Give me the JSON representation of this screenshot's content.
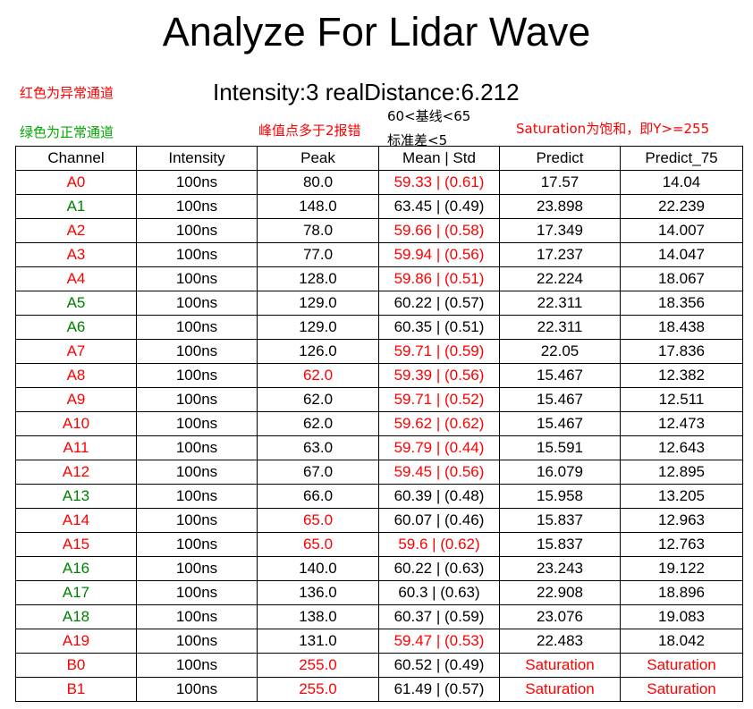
{
  "title": "Analyze For Lidar Wave",
  "summary": "Intensity:3 realDistance:6.212",
  "legend": {
    "red_text": "红色为异常通道",
    "green_text": "绿色为正常通道"
  },
  "notes": {
    "peak": "峰值点多于2报错",
    "mean_rule": "60<基线<65",
    "std_rule": "标准差<5",
    "saturation": "Saturation为饱和，即Y>=255"
  },
  "colors": {
    "abnormal": "#ff0000",
    "normal": "#008000"
  },
  "table": {
    "headers": [
      "Channel",
      "Intensity",
      "Peak",
      "Mean | Std",
      "Predict",
      "Predict_75"
    ],
    "rows": [
      {
        "channel": "A0",
        "status": "abnormal",
        "intensity": "100ns",
        "peak": "80.0",
        "peak_flag": false,
        "mean_std": "59.33 | (0.61)",
        "mean_flag": true,
        "predict": "17.57",
        "predict_flag": false,
        "predict_75": "14.04",
        "predict_75_flag": false
      },
      {
        "channel": "A1",
        "status": "normal",
        "intensity": "100ns",
        "peak": "148.0",
        "peak_flag": false,
        "mean_std": "63.45 | (0.49)",
        "mean_flag": false,
        "predict": "23.898",
        "predict_flag": false,
        "predict_75": "22.239",
        "predict_75_flag": false
      },
      {
        "channel": "A2",
        "status": "abnormal",
        "intensity": "100ns",
        "peak": "78.0",
        "peak_flag": false,
        "mean_std": "59.66 | (0.58)",
        "mean_flag": true,
        "predict": "17.349",
        "predict_flag": false,
        "predict_75": "14.007",
        "predict_75_flag": false
      },
      {
        "channel": "A3",
        "status": "abnormal",
        "intensity": "100ns",
        "peak": "77.0",
        "peak_flag": false,
        "mean_std": "59.94 | (0.56)",
        "mean_flag": true,
        "predict": "17.237",
        "predict_flag": false,
        "predict_75": "14.047",
        "predict_75_flag": false
      },
      {
        "channel": "A4",
        "status": "abnormal",
        "intensity": "100ns",
        "peak": "128.0",
        "peak_flag": false,
        "mean_std": "59.86 | (0.51)",
        "mean_flag": true,
        "predict": "22.224",
        "predict_flag": false,
        "predict_75": "18.067",
        "predict_75_flag": false
      },
      {
        "channel": "A5",
        "status": "normal",
        "intensity": "100ns",
        "peak": "129.0",
        "peak_flag": false,
        "mean_std": "60.22 | (0.57)",
        "mean_flag": false,
        "predict": "22.311",
        "predict_flag": false,
        "predict_75": "18.356",
        "predict_75_flag": false
      },
      {
        "channel": "A6",
        "status": "normal",
        "intensity": "100ns",
        "peak": "129.0",
        "peak_flag": false,
        "mean_std": "60.35 | (0.51)",
        "mean_flag": false,
        "predict": "22.311",
        "predict_flag": false,
        "predict_75": "18.438",
        "predict_75_flag": false
      },
      {
        "channel": "A7",
        "status": "abnormal",
        "intensity": "100ns",
        "peak": "126.0",
        "peak_flag": false,
        "mean_std": "59.71 | (0.59)",
        "mean_flag": true,
        "predict": "22.05",
        "predict_flag": false,
        "predict_75": "17.836",
        "predict_75_flag": false
      },
      {
        "channel": "A8",
        "status": "abnormal",
        "intensity": "100ns",
        "peak": "62.0",
        "peak_flag": true,
        "mean_std": "59.39 | (0.56)",
        "mean_flag": true,
        "predict": "15.467",
        "predict_flag": false,
        "predict_75": "12.382",
        "predict_75_flag": false
      },
      {
        "channel": "A9",
        "status": "abnormal",
        "intensity": "100ns",
        "peak": "62.0",
        "peak_flag": false,
        "mean_std": "59.71 | (0.52)",
        "mean_flag": true,
        "predict": "15.467",
        "predict_flag": false,
        "predict_75": "12.511",
        "predict_75_flag": false
      },
      {
        "channel": "A10",
        "status": "abnormal",
        "intensity": "100ns",
        "peak": "62.0",
        "peak_flag": false,
        "mean_std": "59.62 | (0.62)",
        "mean_flag": true,
        "predict": "15.467",
        "predict_flag": false,
        "predict_75": "12.473",
        "predict_75_flag": false
      },
      {
        "channel": "A11",
        "status": "abnormal",
        "intensity": "100ns",
        "peak": "63.0",
        "peak_flag": false,
        "mean_std": "59.79 | (0.44)",
        "mean_flag": true,
        "predict": "15.591",
        "predict_flag": false,
        "predict_75": "12.643",
        "predict_75_flag": false
      },
      {
        "channel": "A12",
        "status": "abnormal",
        "intensity": "100ns",
        "peak": "67.0",
        "peak_flag": false,
        "mean_std": "59.45 | (0.56)",
        "mean_flag": true,
        "predict": "16.079",
        "predict_flag": false,
        "predict_75": "12.895",
        "predict_75_flag": false
      },
      {
        "channel": "A13",
        "status": "normal",
        "intensity": "100ns",
        "peak": "66.0",
        "peak_flag": false,
        "mean_std": "60.39 | (0.48)",
        "mean_flag": false,
        "predict": "15.958",
        "predict_flag": false,
        "predict_75": "13.205",
        "predict_75_flag": false
      },
      {
        "channel": "A14",
        "status": "abnormal",
        "intensity": "100ns",
        "peak": "65.0",
        "peak_flag": true,
        "mean_std": "60.07 | (0.46)",
        "mean_flag": false,
        "predict": "15.837",
        "predict_flag": false,
        "predict_75": "12.963",
        "predict_75_flag": false
      },
      {
        "channel": "A15",
        "status": "abnormal",
        "intensity": "100ns",
        "peak": "65.0",
        "peak_flag": true,
        "mean_std": "59.6 | (0.62)",
        "mean_flag": true,
        "predict": "15.837",
        "predict_flag": false,
        "predict_75": "12.763",
        "predict_75_flag": false
      },
      {
        "channel": "A16",
        "status": "normal",
        "intensity": "100ns",
        "peak": "140.0",
        "peak_flag": false,
        "mean_std": "60.22 | (0.63)",
        "mean_flag": false,
        "predict": "23.243",
        "predict_flag": false,
        "predict_75": "19.122",
        "predict_75_flag": false
      },
      {
        "channel": "A17",
        "status": "normal",
        "intensity": "100ns",
        "peak": "136.0",
        "peak_flag": false,
        "mean_std": "60.3 | (0.63)",
        "mean_flag": false,
        "predict": "22.908",
        "predict_flag": false,
        "predict_75": "18.896",
        "predict_75_flag": false
      },
      {
        "channel": "A18",
        "status": "normal",
        "intensity": "100ns",
        "peak": "138.0",
        "peak_flag": false,
        "mean_std": "60.37 | (0.59)",
        "mean_flag": false,
        "predict": "23.076",
        "predict_flag": false,
        "predict_75": "19.083",
        "predict_75_flag": false
      },
      {
        "channel": "A19",
        "status": "abnormal",
        "intensity": "100ns",
        "peak": "131.0",
        "peak_flag": false,
        "mean_std": "59.47 | (0.53)",
        "mean_flag": true,
        "predict": "22.483",
        "predict_flag": false,
        "predict_75": "18.042",
        "predict_75_flag": false
      },
      {
        "channel": "B0",
        "status": "abnormal",
        "intensity": "100ns",
        "peak": "255.0",
        "peak_flag": true,
        "mean_std": "60.52 | (0.49)",
        "mean_flag": false,
        "predict": "Saturation",
        "predict_flag": true,
        "predict_75": "Saturation",
        "predict_75_flag": true
      },
      {
        "channel": "B1",
        "status": "abnormal",
        "intensity": "100ns",
        "peak": "255.0",
        "peak_flag": true,
        "mean_std": "61.49 | (0.57)",
        "mean_flag": false,
        "predict": "Saturation",
        "predict_flag": true,
        "predict_75": "Saturation",
        "predict_75_flag": true
      }
    ]
  }
}
